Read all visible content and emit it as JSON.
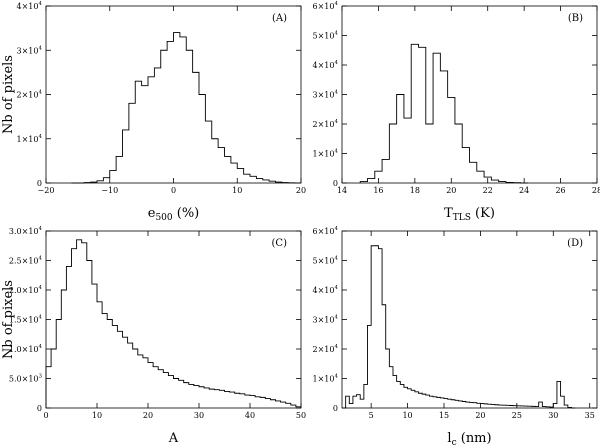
{
  "chart_data": [
    {
      "type": "bar",
      "panel_label": "(A)",
      "xlabel_main": "e",
      "xlabel_sub": "500",
      "xlabel_rest": " (%)",
      "ylabel": "Nb of pixels",
      "xlim": [
        -20,
        20
      ],
      "ylim": [
        0,
        40000
      ],
      "xticks": [
        -20,
        -10,
        0,
        10,
        20
      ],
      "xtick_labels": [
        "−20",
        "−10",
        "0",
        "10",
        "20"
      ],
      "yticks": [
        0,
        10000,
        20000,
        30000,
        40000
      ],
      "ytick_labels": [
        {
          "m": "0",
          "e": ""
        },
        {
          "m": "1×10",
          "e": "4"
        },
        {
          "m": "2×10",
          "e": "4"
        },
        {
          "m": "3×10",
          "e": "4"
        },
        {
          "m": "4×10",
          "e": "4"
        }
      ],
      "bin_edges": [
        -16,
        -15,
        -14,
        -13,
        -12,
        -11,
        -10,
        -9,
        -8,
        -7,
        -6,
        -5,
        -4,
        -3,
        -2,
        -1,
        0,
        1,
        2,
        3,
        4,
        5,
        6,
        7,
        8,
        9,
        10,
        11,
        12,
        13,
        14,
        15,
        16,
        17,
        18,
        19,
        20
      ],
      "values": [
        0,
        0,
        100,
        200,
        500,
        1200,
        2800,
        6000,
        12000,
        18000,
        23000,
        22000,
        24000,
        26000,
        30000,
        32000,
        34000,
        33000,
        30000,
        25000,
        20000,
        14000,
        10000,
        8000,
        6000,
        4500,
        3300,
        2000,
        1500,
        1000,
        700,
        400,
        200,
        100,
        50,
        0
      ]
    },
    {
      "type": "bar",
      "panel_label": "(B)",
      "xlabel_main": "T",
      "xlabel_sub": "TLS",
      "xlabel_rest": "  (K)",
      "ylabel": "",
      "xlim": [
        14,
        28
      ],
      "ylim": [
        0,
        60000
      ],
      "xticks": [
        14,
        16,
        18,
        20,
        22,
        24,
        26,
        28
      ],
      "xtick_labels": [
        "14",
        "16",
        "18",
        "20",
        "22",
        "24",
        "26",
        "28"
      ],
      "yticks": [
        0,
        10000,
        20000,
        30000,
        40000,
        50000,
        60000
      ],
      "ytick_labels": [
        {
          "m": "0",
          "e": ""
        },
        {
          "m": "1×10",
          "e": "4"
        },
        {
          "m": "2×10",
          "e": "4"
        },
        {
          "m": "3×10",
          "e": "4"
        },
        {
          "m": "4×10",
          "e": "4"
        },
        {
          "m": "5×10",
          "e": "4"
        },
        {
          "m": "6×10",
          "e": "4"
        }
      ],
      "bin_edges": [
        15.0,
        15.4,
        15.8,
        16.2,
        16.6,
        17.0,
        17.4,
        17.8,
        18.2,
        18.6,
        19.0,
        19.4,
        19.8,
        20.2,
        20.6,
        21.0,
        21.4,
        21.8,
        22.2,
        22.6,
        23.0,
        23.4,
        23.8,
        24.2
      ],
      "values": [
        500,
        1500,
        4000,
        8000,
        20000,
        30000,
        22000,
        47000,
        46000,
        20000,
        44000,
        38000,
        29000,
        20000,
        12000,
        7000,
        4000,
        2000,
        1000,
        500,
        200,
        100,
        0
      ]
    },
    {
      "type": "bar",
      "panel_label": "(C)",
      "xlabel_main": "A",
      "xlabel_sub": "",
      "xlabel_rest": "",
      "ylabel": "Nb of pixels",
      "xlim": [
        0,
        50
      ],
      "ylim": [
        0,
        30000
      ],
      "xticks": [
        0,
        10,
        20,
        30,
        40,
        50
      ],
      "xtick_labels": [
        "0",
        "10",
        "20",
        "30",
        "40",
        "50"
      ],
      "yticks": [
        0,
        5000,
        10000,
        15000,
        20000,
        25000,
        30000
      ],
      "ytick_labels": [
        {
          "m": "0",
          "e": ""
        },
        {
          "m": "5.0×10",
          "e": "3"
        },
        {
          "m": "1.0×10",
          "e": "4"
        },
        {
          "m": "1.5×10",
          "e": "4"
        },
        {
          "m": "2.0×10",
          "e": "4"
        },
        {
          "m": "2.5×10",
          "e": "4"
        },
        {
          "m": "3.0×10",
          "e": "4"
        }
      ],
      "bin_edges": [
        0,
        1,
        2,
        3,
        4,
        5,
        6,
        7,
        8,
        9,
        10,
        11,
        12,
        13,
        14,
        15,
        16,
        17,
        18,
        19,
        20,
        21,
        22,
        23,
        24,
        25,
        26,
        27,
        28,
        29,
        30,
        31,
        32,
        33,
        34,
        35,
        36,
        37,
        38,
        39,
        40,
        41,
        42,
        43,
        44,
        45,
        46,
        47,
        48,
        49,
        50
      ],
      "values": [
        7000,
        10000,
        15000,
        20000,
        24000,
        27000,
        28500,
        28000,
        25000,
        21000,
        18000,
        16000,
        15000,
        14000,
        13000,
        12000,
        11000,
        10000,
        9000,
        8500,
        7700,
        7000,
        6500,
        6000,
        5500,
        5000,
        4700,
        4300,
        4000,
        3800,
        3600,
        3400,
        3200,
        3100,
        3000,
        2800,
        2700,
        2500,
        2400,
        2200,
        2100,
        1900,
        1800,
        1600,
        1400,
        1200,
        1000,
        800,
        500,
        200
      ]
    },
    {
      "type": "bar",
      "panel_label": "(D)",
      "xlabel_main": "l",
      "xlabel_sub": "c",
      "xlabel_rest": " (nm)",
      "ylabel": "",
      "xlim": [
        1,
        36
      ],
      "ylim": [
        0,
        60000
      ],
      "xticks": [
        5,
        10,
        15,
        20,
        25,
        30,
        35
      ],
      "xtick_labels": [
        "5",
        "10",
        "15",
        "20",
        "25",
        "30",
        "35"
      ],
      "yticks": [
        0,
        10000,
        20000,
        30000,
        40000,
        50000,
        60000
      ],
      "ytick_labels": [
        {
          "m": "0",
          "e": ""
        },
        {
          "m": "1×10",
          "e": "4"
        },
        {
          "m": "2×10",
          "e": "4"
        },
        {
          "m": "3×10",
          "e": "4"
        },
        {
          "m": "4×10",
          "e": "4"
        },
        {
          "m": "5×10",
          "e": "4"
        },
        {
          "m": "6×10",
          "e": "4"
        }
      ],
      "bin_edges": [
        1,
        1.5,
        2,
        2.5,
        3,
        3.5,
        4,
        4.5,
        5,
        5.5,
        6,
        6.5,
        7,
        7.5,
        8,
        8.5,
        9,
        9.5,
        10,
        10.5,
        11,
        11.5,
        12,
        12.5,
        13,
        13.5,
        14,
        14.5,
        15,
        15.5,
        16,
        16.5,
        17,
        17.5,
        18,
        18.5,
        19,
        19.5,
        20,
        20.5,
        21,
        21.5,
        22,
        22.5,
        23,
        23.5,
        24,
        24.5,
        25,
        25.5,
        26,
        26.5,
        27,
        27.5,
        28,
        28.5,
        29,
        29.5,
        30,
        30.5,
        31,
        31.5,
        32,
        32.5,
        33
      ],
      "values": [
        0,
        4000,
        1500,
        4000,
        4500,
        3000,
        8000,
        28000,
        55000,
        55000,
        54000,
        35000,
        20000,
        14000,
        11000,
        9000,
        8000,
        7000,
        6500,
        6000,
        5500,
        5000,
        4700,
        4400,
        4000,
        3800,
        3600,
        3400,
        3200,
        3000,
        2800,
        2600,
        2400,
        2200,
        2000,
        1900,
        1800,
        1600,
        1500,
        1400,
        1300,
        1200,
        1100,
        1000,
        950,
        900,
        850,
        800,
        750,
        700,
        650,
        600,
        550,
        500,
        2000,
        500,
        400,
        300,
        1500,
        9000,
        4000,
        1000,
        200,
        0
      ]
    }
  ]
}
